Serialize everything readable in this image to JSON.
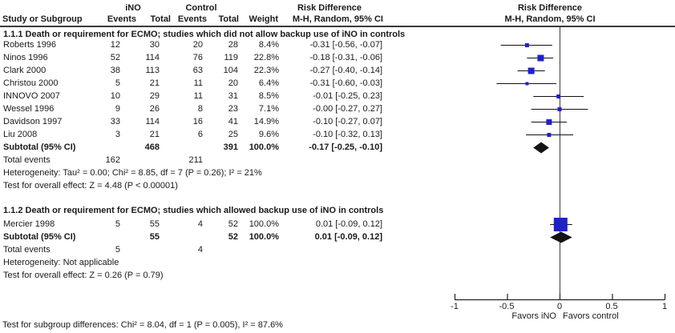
{
  "header": {
    "group_ino": "iNO",
    "group_control": "Control",
    "risk_difference": "Risk Difference",
    "mh_random": "M-H, Random, 95% CI",
    "study_or_subgroup": "Study or Subgroup",
    "events": "Events",
    "total": "Total",
    "weight": "Weight"
  },
  "plot_header": {
    "risk_difference": "Risk Difference",
    "mh_random": "M-H, Random, 95% CI"
  },
  "sections": [
    {
      "heading": "1.1.1 Death or requirement for ECMO; studies which did not allow backup use of iNO in controls",
      "studies": [
        {
          "label": "Roberts 1996",
          "events_ino": "12",
          "total_ino": "30",
          "events_control": "20",
          "total_control": "28",
          "weight": "8.4%",
          "rd_ci": "-0.31 [-0.56, -0.07]",
          "weight_value": 8.4,
          "estimate": -0.31,
          "ci_low": -0.56,
          "ci_high": -0.07
        },
        {
          "label": "Ninos 1996",
          "events_ino": "52",
          "total_ino": "114",
          "events_control": "76",
          "total_control": "119",
          "weight": "22.8%",
          "rd_ci": "-0.18 [-0.31, -0.06]",
          "weight_value": 22.8,
          "estimate": -0.18,
          "ci_low": -0.31,
          "ci_high": -0.06
        },
        {
          "label": "Clark 2000",
          "events_ino": "38",
          "total_ino": "113",
          "events_control": "63",
          "total_control": "104",
          "weight": "22.3%",
          "rd_ci": "-0.27 [-0.40, -0.14]",
          "weight_value": 22.3,
          "estimate": -0.27,
          "ci_low": -0.4,
          "ci_high": -0.14
        },
        {
          "label": "Christou 2000",
          "events_ino": "5",
          "total_ino": "21",
          "events_control": "11",
          "total_control": "20",
          "weight": "6.4%",
          "rd_ci": "-0.31 [-0.60, -0.03]",
          "weight_value": 6.4,
          "estimate": -0.31,
          "ci_low": -0.6,
          "ci_high": -0.03
        },
        {
          "label": "INNOVO 2007",
          "events_ino": "10",
          "total_ino": "29",
          "events_control": "11",
          "total_control": "31",
          "weight": "8.5%",
          "rd_ci": "-0.01 [-0.25, 0.23]",
          "weight_value": 8.5,
          "estimate": -0.01,
          "ci_low": -0.25,
          "ci_high": 0.23
        },
        {
          "label": "Wessel 1996",
          "events_ino": "9",
          "total_ino": "26",
          "events_control": "8",
          "total_control": "23",
          "weight": "7.1%",
          "rd_ci": "-0.00 [-0.27, 0.27]",
          "weight_value": 7.1,
          "estimate": 0.0,
          "ci_low": -0.27,
          "ci_high": 0.27
        },
        {
          "label": "Davidson 1997",
          "events_ino": "33",
          "total_ino": "114",
          "events_control": "16",
          "total_control": "41",
          "weight": "14.9%",
          "rd_ci": "-0.10 [-0.27, 0.07]",
          "weight_value": 14.9,
          "estimate": -0.1,
          "ci_low": -0.27,
          "ci_high": 0.07
        },
        {
          "label": "Liu 2008",
          "events_ino": "3",
          "total_ino": "21",
          "events_control": "6",
          "total_control": "25",
          "weight": "9.6%",
          "rd_ci": "-0.10 [-0.32, 0.13]",
          "weight_value": 9.6,
          "estimate": -0.1,
          "ci_low": -0.32,
          "ci_high": 0.13
        }
      ],
      "subtotal": {
        "label": "Subtotal (95% CI)",
        "total_ino": "468",
        "total_control": "391",
        "weight": "100.0%",
        "rd_ci": "-0.17 [-0.25, -0.10]",
        "estimate": -0.17,
        "ci_low": -0.25,
        "ci_high": -0.1
      },
      "total_events": {
        "label": "Total events",
        "ino": "162",
        "control": "211"
      },
      "heterogeneity": "Heterogeneity: Tau² = 0.00; Chi² = 8.85, df = 7 (P = 0.26); I² = 21%",
      "overall_effect": "Test for overall effect: Z = 4.48 (P < 0.00001)"
    },
    {
      "heading": "1.1.2 Death or requirement for ECMO; studies which allowed backup use of iNO in controls",
      "studies": [
        {
          "label": "Mercier 1998",
          "events_ino": "5",
          "total_ino": "55",
          "events_control": "4",
          "total_control": "52",
          "weight": "100.0%",
          "rd_ci": "0.01 [-0.09, 0.12]",
          "weight_value": 100.0,
          "estimate": 0.01,
          "ci_low": -0.09,
          "ci_high": 0.12
        }
      ],
      "subtotal": {
        "label": "Subtotal (95% CI)",
        "total_ino": "55",
        "total_control": "52",
        "weight": "100.0%",
        "rd_ci": "0.01 [-0.09, 0.12]",
        "estimate": 0.01,
        "ci_low": -0.09,
        "ci_high": 0.12
      },
      "total_events": {
        "label": "Total events",
        "ino": "5",
        "control": "4"
      },
      "heterogeneity": "Heterogeneity: Not applicable",
      "overall_effect": "Test for overall effect: Z = 0.26 (P = 0.79)"
    }
  ],
  "footer": "Test for subgroup differences: Chi² = 8.04, df = 1 (P = 0.005), I² = 87.6%",
  "axis": {
    "ticks": [
      "-1",
      "-0.5",
      "0",
      "0.5",
      "1"
    ],
    "tick_values": [
      -1,
      -0.5,
      0,
      0.5,
      1
    ],
    "range": [
      -1,
      1
    ],
    "favors_left": "Favors iNO",
    "favors_right": "Favors control"
  },
  "colors": {
    "marker_blue": "#2020cc",
    "diamond_black": "#141414",
    "line_black": "#111111"
  },
  "chart_data": {
    "type": "scatter",
    "variant": "forest_plot",
    "title": "Risk Difference",
    "effect_measure": "M-H, Random, 95% CI",
    "xlim": [
      -1,
      1
    ],
    "x_ticks": [
      -1,
      -0.5,
      0,
      0.5,
      1
    ],
    "zero_line": 0,
    "xlabel_left": "Favors iNO",
    "xlabel_right": "Favors control",
    "subgroups": [
      {
        "name": "1.1.1 Death or requirement for ECMO; studies which did not allow backup use of iNO in controls",
        "points": [
          {
            "study": "Roberts 1996",
            "ino_events": 12,
            "ino_total": 30,
            "control_events": 20,
            "control_total": 28,
            "weight_pct": 8.4,
            "estimate": -0.31,
            "ci": [
              -0.56,
              -0.07
            ]
          },
          {
            "study": "Ninos 1996",
            "ino_events": 52,
            "ino_total": 114,
            "control_events": 76,
            "control_total": 119,
            "weight_pct": 22.8,
            "estimate": -0.18,
            "ci": [
              -0.31,
              -0.06
            ]
          },
          {
            "study": "Clark 2000",
            "ino_events": 38,
            "ino_total": 113,
            "control_events": 63,
            "control_total": 104,
            "weight_pct": 22.3,
            "estimate": -0.27,
            "ci": [
              -0.4,
              -0.14
            ]
          },
          {
            "study": "Christou 2000",
            "ino_events": 5,
            "ino_total": 21,
            "control_events": 11,
            "control_total": 20,
            "weight_pct": 6.4,
            "estimate": -0.31,
            "ci": [
              -0.6,
              -0.03
            ]
          },
          {
            "study": "INNOVO 2007",
            "ino_events": 10,
            "ino_total": 29,
            "control_events": 11,
            "control_total": 31,
            "weight_pct": 8.5,
            "estimate": -0.01,
            "ci": [
              -0.25,
              0.23
            ]
          },
          {
            "study": "Wessel 1996",
            "ino_events": 9,
            "ino_total": 26,
            "control_events": 8,
            "control_total": 23,
            "weight_pct": 7.1,
            "estimate": 0.0,
            "ci": [
              -0.27,
              0.27
            ]
          },
          {
            "study": "Davidson 1997",
            "ino_events": 33,
            "ino_total": 114,
            "control_events": 16,
            "control_total": 41,
            "weight_pct": 14.9,
            "estimate": -0.1,
            "ci": [
              -0.27,
              0.07
            ]
          },
          {
            "study": "Liu 2008",
            "ino_events": 3,
            "ino_total": 21,
            "control_events": 6,
            "control_total": 25,
            "weight_pct": 9.6,
            "estimate": -0.1,
            "ci": [
              -0.32,
              0.13
            ]
          }
        ],
        "subtotal": {
          "ino_total": 468,
          "control_total": 391,
          "weight_pct": 100.0,
          "estimate": -0.17,
          "ci": [
            -0.25,
            -0.1
          ],
          "total_events_ino": 162,
          "total_events_control": 211
        },
        "heterogeneity": "Tau² = 0.00; Chi² = 8.85, df = 7 (P = 0.26); I² = 21%",
        "overall_effect": "Z = 4.48 (P < 0.00001)"
      },
      {
        "name": "1.1.2 Death or requirement for ECMO; studies which allowed backup use of iNO in controls",
        "points": [
          {
            "study": "Mercier 1998",
            "ino_events": 5,
            "ino_total": 55,
            "control_events": 4,
            "control_total": 52,
            "weight_pct": 100.0,
            "estimate": 0.01,
            "ci": [
              -0.09,
              0.12
            ]
          }
        ],
        "subtotal": {
          "ino_total": 55,
          "control_total": 52,
          "weight_pct": 100.0,
          "estimate": 0.01,
          "ci": [
            -0.09,
            0.12
          ],
          "total_events_ino": 5,
          "total_events_control": 4
        },
        "heterogeneity": "Not applicable",
        "overall_effect": "Z = 0.26 (P = 0.79)"
      }
    ],
    "subgroup_difference_test": "Chi² = 8.04, df = 1 (P = 0.005), I² = 87.6%"
  }
}
